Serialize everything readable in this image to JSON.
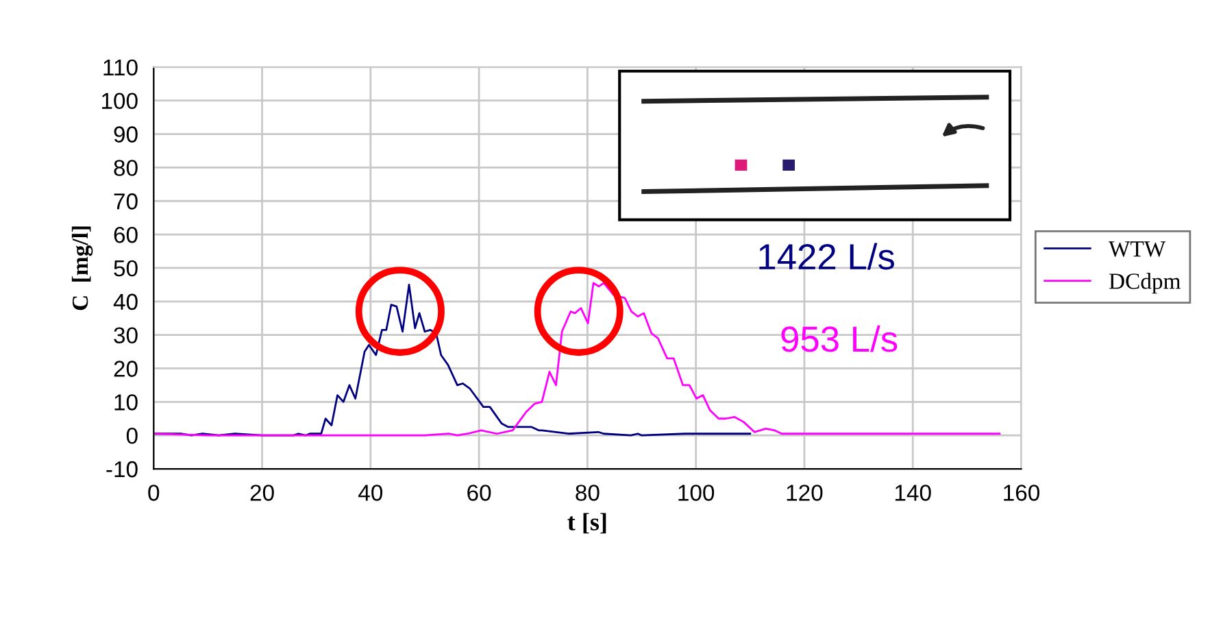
{
  "chart_data": {
    "type": "line",
    "xlabel": "t [s]",
    "ylabel": "C  [mg/l]",
    "xlim": [
      0,
      160
    ],
    "xticks": [
      0,
      20,
      40,
      60,
      80,
      100,
      120,
      140,
      160
    ],
    "ylim": [
      -10,
      110
    ],
    "yticks": [
      -10,
      0,
      10,
      20,
      30,
      40,
      50,
      60,
      70,
      80,
      90,
      100,
      110
    ],
    "grid": true,
    "legend": "right",
    "marker": "none",
    "line_style": "solid",
    "annotations": [
      "1422 L/s",
      "953 L/s"
    ],
    "series": [
      {
        "name": "WTW",
        "color": "#000080",
        "x": [
          0,
          5,
          7,
          9,
          12,
          15,
          20,
          25.8,
          26.7,
          28,
          28.8,
          30.9,
          31.7,
          32.8,
          33.9,
          35,
          36.1,
          37.2,
          38.9,
          39.7,
          41,
          42.1,
          42.9,
          43.8,
          44.8,
          45.9,
          47.1,
          48.2,
          49,
          50,
          51,
          52.1,
          53,
          54.3,
          56,
          57,
          58.3,
          60.8,
          62,
          64.2,
          65.4,
          69.7,
          71,
          71.6,
          76.5,
          82,
          83,
          88,
          89.3,
          90,
          98,
          100.5,
          110
        ],
        "values": [
          0.5,
          0.5,
          0,
          0.5,
          0,
          0.5,
          0,
          0,
          0.5,
          0,
          0.5,
          0.5,
          5,
          3,
          12,
          10,
          15,
          11,
          25,
          27,
          24,
          31.5,
          31.5,
          39,
          38.5,
          31,
          45,
          32,
          36.5,
          31,
          31.5,
          30.5,
          24,
          21,
          15,
          15.5,
          14,
          8.5,
          8.5,
          3.5,
          2.5,
          2.5,
          1.5,
          1.5,
          0.5,
          1,
          0.5,
          0,
          0.5,
          0,
          0.5,
          0.5,
          0.5
        ]
      },
      {
        "name": "DCdpm",
        "color": "#ff00ff",
        "x": [
          0,
          10,
          20,
          30,
          40,
          50,
          54.5,
          56,
          57.9,
          60.4,
          63.3,
          66.2,
          68.7,
          70.3,
          71.6,
          73,
          74.2,
          75.3,
          76.9,
          77.7,
          78.8,
          80.1,
          81.1,
          82.1,
          83,
          84.8,
          86.9,
          88.1,
          89.3,
          90.4,
          91.8,
          93,
          94.7,
          95.9,
          97.6,
          98.8,
          100.1,
          101.3,
          102.6,
          104.2,
          105.5,
          107.1,
          108.8,
          110.8,
          112.9,
          114.5,
          115.8,
          130,
          156
        ],
        "values": [
          0.5,
          0,
          0,
          0,
          0,
          0,
          0.5,
          0,
          0.5,
          1.5,
          0.5,
          1.5,
          7,
          9.5,
          10,
          19,
          15,
          31,
          37,
          36.5,
          38,
          33.5,
          45.5,
          44.5,
          45.5,
          42,
          41,
          37,
          35.5,
          36.5,
          30.5,
          29,
          23,
          23,
          15,
          15,
          11,
          12,
          7.5,
          5,
          5,
          5.5,
          4,
          1,
          2,
          1.5,
          0.5,
          0.5,
          0.5
        ]
      }
    ]
  }
}
